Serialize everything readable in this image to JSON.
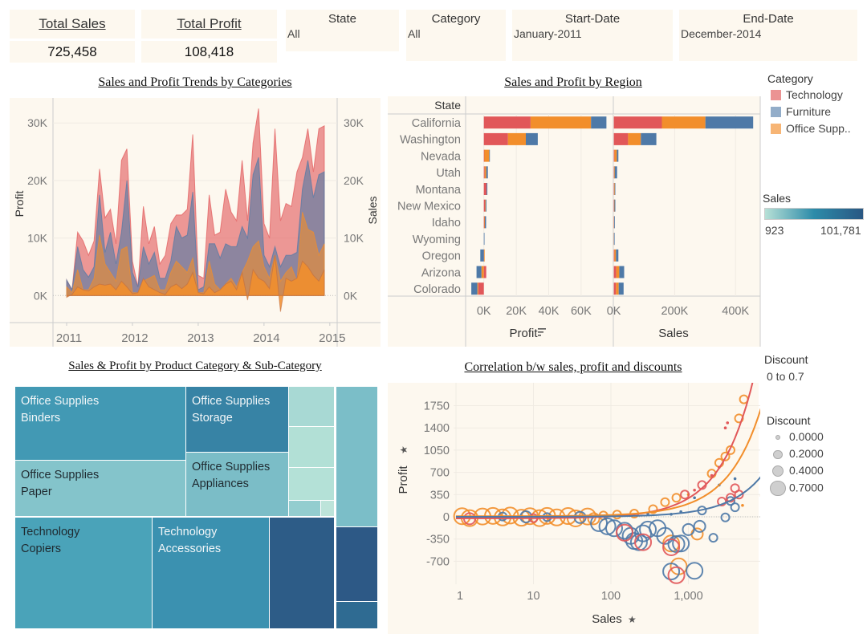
{
  "kpis": [
    {
      "label": "Total Sales",
      "value": "725,458"
    },
    {
      "label": "Total Profit",
      "value": "108,418"
    }
  ],
  "filters": [
    {
      "label": "State",
      "value": "All"
    },
    {
      "label": "Category",
      "value": "All"
    },
    {
      "label": "Start-Date",
      "value": "January-2011"
    },
    {
      "label": "End-Date",
      "value": "December-2014"
    }
  ],
  "colors": {
    "Technology": "#e15759",
    "Furniture": "#4e79a7",
    "Office Supplies": "#f28e2b",
    "panel_bg": "#fdf8ef"
  },
  "legends": {
    "category": {
      "title": "Category",
      "items": [
        {
          "label": "Technology",
          "color": "#eb9393"
        },
        {
          "label": "Furniture",
          "color": "#93adc9"
        },
        {
          "label": "Office Supp..",
          "color": "#f7b575"
        }
      ]
    },
    "sales_color": {
      "title": "Sales",
      "min": "923",
      "max": "101,781",
      "colors": [
        "#b7e0d6",
        "#2c8ba9",
        "#2a5783"
      ]
    },
    "discount_filter": {
      "title": "Discount",
      "range": "0 to 0.7"
    },
    "discount_size": {
      "title": "Discount",
      "items": [
        {
          "label": "0.0000",
          "value": 0
        },
        {
          "label": "0.2000",
          "value": 0.2
        },
        {
          "label": "0.4000",
          "value": 0.4
        },
        {
          "label": "0.7000",
          "value": 0.7
        }
      ]
    }
  },
  "chart_data": [
    {
      "type": "area",
      "title": "Sales and Profit Trends by Categories",
      "stacked": true,
      "ylabel": "Profit",
      "y2label": "Sales",
      "y_ticks": [
        "0K",
        "10K",
        "20K",
        "30K"
      ],
      "y_tick_values": [
        0,
        10,
        20,
        30
      ],
      "y2_ticks": [
        "0K",
        "10K",
        "20K",
        "30K"
      ],
      "x_ticks": [
        "2011",
        "2012",
        "2013",
        "2014",
        "2015"
      ],
      "x": [
        "2011-01",
        "2011-02",
        "2011-03",
        "2011-04",
        "2011-05",
        "2011-06",
        "2011-07",
        "2011-08",
        "2011-09",
        "2011-10",
        "2011-11",
        "2011-12",
        "2012-01",
        "2012-02",
        "2012-03",
        "2012-04",
        "2012-05",
        "2012-06",
        "2012-07",
        "2012-08",
        "2012-09",
        "2012-10",
        "2012-11",
        "2012-12",
        "2013-01",
        "2013-02",
        "2013-03",
        "2013-04",
        "2013-05",
        "2013-06",
        "2013-07",
        "2013-08",
        "2013-09",
        "2013-10",
        "2013-11",
        "2013-12",
        "2014-01",
        "2014-02",
        "2014-03",
        "2014-04",
        "2014-05",
        "2014-06",
        "2014-07",
        "2014-08",
        "2014-09",
        "2014-10",
        "2014-11",
        "2014-12"
      ],
      "series": [
        {
          "name": "Office Supplies",
          "measure": "Sales",
          "values": [
            1.5,
            0.5,
            4.5,
            1,
            1,
            3,
            10.5,
            5.5,
            4,
            2.5,
            8,
            8.5,
            0.5,
            0.5,
            2.5,
            3,
            3.5,
            1,
            1,
            4,
            6,
            5,
            4,
            6.5,
            0.5,
            0.5,
            6,
            2,
            1,
            2,
            3,
            1.5,
            4,
            6,
            8.5,
            9.5,
            5,
            3,
            7,
            2.5,
            4,
            5,
            2.5,
            14.5,
            11.5,
            11,
            7,
            9
          ]
        },
        {
          "name": "Furniture",
          "measure": "Sales",
          "values": [
            1.2,
            0.5,
            4,
            3.5,
            2.2,
            2,
            7,
            2,
            7,
            3,
            3,
            11.5,
            3.5,
            1,
            6,
            2.5,
            4,
            2,
            2,
            2,
            6,
            5,
            6.5,
            11.5,
            0.5,
            1,
            3,
            7,
            5.5,
            7,
            5.5,
            7,
            8,
            4,
            12.5,
            14.5,
            2,
            2,
            1.5,
            2.5,
            3,
            2,
            5,
            4,
            12,
            6,
            14,
            12.5
          ]
        },
        {
          "name": "Technology",
          "measure": "Sales",
          "values": [
            0,
            0,
            2.5,
            5,
            3.8,
            4.5,
            4.5,
            6,
            4,
            3.5,
            12.5,
            5.5,
            2,
            0,
            7,
            3.5,
            4.5,
            2.5,
            4,
            6.5,
            2,
            4,
            4.5,
            10,
            2.5,
            1.5,
            8.5,
            1.5,
            4.5,
            9.5,
            6,
            4.5,
            11.5,
            3,
            5.5,
            8.5,
            5.5,
            5,
            20.5,
            8,
            9,
            8.5,
            14,
            5.5,
            5.5,
            4.5,
            8,
            8
          ]
        },
        {
          "measure": "Profit",
          "values": [
            -0.3,
            0.2,
            1.5,
            1,
            0.8,
            1.5,
            2,
            1.8,
            2,
            1,
            2.5,
            1.5,
            0.3,
            0.5,
            3,
            1.5,
            1,
            0.5,
            0.2,
            1.5,
            2,
            1.2,
            2,
            4,
            0.5,
            0.3,
            1.5,
            0.5,
            1,
            2,
            2.5,
            1,
            4,
            -0.8,
            4.5,
            3,
            2.5,
            1.2,
            7,
            -2.8,
            3,
            2.5,
            3,
            6,
            5,
            3.5,
            2.5,
            4.5
          ]
        }
      ]
    },
    {
      "type": "bar",
      "orientation": "horizontal",
      "stacked": true,
      "title": "Sales and Profit by Region",
      "row_header": "State",
      "categories": [
        "California",
        "Washington",
        "Nevada",
        "Utah",
        "Montana",
        "New Mexico",
        "Idaho",
        "Wyoming",
        "Oregon",
        "Arizona",
        "Colorado"
      ],
      "panels": [
        {
          "measure": "Profit",
          "sort_icon": "sort-descending-icon",
          "ticks": [
            "0K",
            "20K",
            "40K",
            "60K"
          ],
          "tick_values": [
            0,
            20,
            40,
            60
          ],
          "series": [
            {
              "name": "Technology",
              "values": [
                28.8,
                14.9,
                0.3,
                0.5,
                1.7,
                0.8,
                0.3,
                0,
                0.1,
                1.5,
                -3.4
              ]
            },
            {
              "name": "Office Supplies",
              "values": [
                37.3,
                11,
                3,
                1,
                0,
                0.3,
                0.3,
                0,
                0.2,
                -1.5,
                -0.6
              ]
            },
            {
              "name": "Furniture",
              "values": [
                9.5,
                7.4,
                0.3,
                1,
                0.5,
                0.5,
                0.8,
                0.2,
                -2.2,
                -3,
                -3.7
              ]
            }
          ]
        },
        {
          "measure": "Sales",
          "ticks": [
            "0K",
            "200K",
            "400K"
          ],
          "tick_values": [
            0,
            200,
            400
          ],
          "series": [
            {
              "name": "Technology",
              "values": [
                158,
                47,
                2,
                1,
                1,
                1,
                0.5,
                0.3,
                2,
                8,
                7
              ]
            },
            {
              "name": "Office Supplies",
              "values": [
                143,
                42,
                8,
                2,
                2,
                1,
                0.5,
                0.3,
                5,
                10,
                9
              ]
            },
            {
              "name": "Furniture",
              "values": [
                157,
                51,
                5,
                8,
                2,
                3,
                1.5,
                0.3,
                8,
                16,
                16
              ]
            }
          ]
        }
      ]
    },
    {
      "type": "treemap",
      "title": "Sales & Profit by Product Category & Sub-Category",
      "cells": [
        {
          "category": "Office Supplies",
          "sub_category": "Binders",
          "color": "#4299b4",
          "text": "light"
        },
        {
          "category": "Office Supplies",
          "sub_category": "Storage",
          "color": "#3783a5",
          "text": "light"
        },
        {
          "category": "Office Supplies",
          "sub_category": "Paper",
          "color": "#84c4cb",
          "text": "dark"
        },
        {
          "category": "Office Supplies",
          "sub_category": "Appliances",
          "color": "#7bbdc7",
          "text": "dark"
        },
        {
          "color": "#a8d9d4"
        },
        {
          "color": "#b2e0d6"
        },
        {
          "color": "#b4e1d7"
        },
        {
          "color": "#93cdcf"
        },
        {
          "color": "#bde4da"
        },
        {
          "category": "Technology",
          "sub_category": "Copiers",
          "color": "#4aa3b9",
          "text": "dark"
        },
        {
          "category": "Technology",
          "sub_category": "Accessories",
          "color": "#3b91b0",
          "text": "light"
        },
        {
          "color": "#2d5c87"
        },
        {
          "color": "#7bbec8"
        },
        {
          "color": "#2d5986"
        },
        {
          "color": "#2f6b92"
        }
      ]
    },
    {
      "type": "scatter",
      "title": "Correlation b/w sales, profit and  discounts",
      "xlabel": "Sales",
      "ylabel": "Profit",
      "x_scale": "log",
      "x_ticks": [
        "1",
        "10",
        "100",
        "1,000"
      ],
      "x_tick_values": [
        1,
        10,
        100,
        1000
      ],
      "y_ticks": [
        "1750",
        "1400",
        "1050",
        "700",
        "350",
        "0",
        "-350",
        "-700"
      ],
      "y_tick_values": [
        1750,
        1400,
        1050,
        700,
        350,
        0,
        -350,
        -700
      ],
      "point_fields": [
        "sales",
        "profit",
        "discount",
        "category"
      ],
      "points": [
        [
          1.2,
          10,
          0.7,
          "Office Supplies"
        ],
        [
          1.5,
          -20,
          0.7,
          "Office Supplies"
        ],
        [
          2.2,
          5,
          0.7,
          "Office Supplies"
        ],
        [
          3,
          15,
          0.7,
          "Office Supplies"
        ],
        [
          4,
          -10,
          0.7,
          "Office Supplies"
        ],
        [
          5,
          20,
          0.7,
          "Office Supplies"
        ],
        [
          7,
          -15,
          0.7,
          "Office Supplies"
        ],
        [
          9,
          10,
          0.7,
          "Office Supplies"
        ],
        [
          12,
          -20,
          0.7,
          "Office Supplies"
        ],
        [
          15,
          15,
          0.7,
          "Office Supplies"
        ],
        [
          20,
          -10,
          0.7,
          "Office Supplies"
        ],
        [
          28,
          12,
          0.7,
          "Office Supplies"
        ],
        [
          35,
          -25,
          0.7,
          "Office Supplies"
        ],
        [
          50,
          5,
          0.7,
          "Office Supplies"
        ],
        [
          60,
          -30,
          0.4,
          "Office Supplies"
        ],
        [
          80,
          20,
          0.2,
          "Office Supplies"
        ],
        [
          120,
          35,
          0.2,
          "Office Supplies"
        ],
        [
          200,
          50,
          0.2,
          "Office Supplies"
        ],
        [
          350,
          120,
          0.2,
          "Office Supplies"
        ],
        [
          500,
          230,
          0.2,
          "Office Supplies"
        ],
        [
          600,
          -420,
          0.7,
          "Office Supplies"
        ],
        [
          700,
          300,
          0.2,
          "Office Supplies"
        ],
        [
          750,
          -780,
          0.7,
          "Office Supplies"
        ],
        [
          1300,
          -270,
          0.4,
          "Office Supplies"
        ],
        [
          2000,
          680,
          0.2,
          "Office Supplies"
        ],
        [
          2500,
          850,
          0.2,
          "Office Supplies"
        ],
        [
          3000,
          950,
          0.2,
          "Office Supplies"
        ],
        [
          3500,
          1050,
          0.2,
          "Office Supplies"
        ],
        [
          4500,
          1550,
          0.2,
          "Office Supplies"
        ],
        [
          5200,
          1850,
          0.2,
          "Office Supplies"
        ],
        [
          8800,
          330,
          0,
          "Office Supplies"
        ],
        [
          5000,
          180,
          0,
          "Office Supplies"
        ],
        [
          1000,
          350,
          0,
          "Office Supplies"
        ],
        [
          4,
          5,
          0.2,
          "Furniture"
        ],
        [
          8,
          0,
          0.4,
          "Furniture"
        ],
        [
          15,
          -5,
          0.2,
          "Furniture"
        ],
        [
          40,
          -10,
          0.4,
          "Furniture"
        ],
        [
          70,
          -100,
          0.7,
          "Furniture"
        ],
        [
          90,
          -150,
          0.7,
          "Furniture"
        ],
        [
          110,
          -180,
          0.7,
          "Furniture"
        ],
        [
          150,
          -220,
          0.7,
          "Furniture"
        ],
        [
          180,
          -300,
          0.7,
          "Furniture"
        ],
        [
          200,
          -380,
          0.7,
          "Furniture"
        ],
        [
          230,
          -400,
          0.7,
          "Furniture"
        ],
        [
          260,
          -260,
          0.7,
          "Furniture"
        ],
        [
          300,
          -200,
          0.7,
          "Furniture"
        ],
        [
          400,
          -180,
          0.7,
          "Furniture"
        ],
        [
          500,
          -300,
          0.7,
          "Furniture"
        ],
        [
          600,
          -860,
          0.7,
          "Furniture"
        ],
        [
          700,
          -430,
          0.7,
          "Furniture"
        ],
        [
          800,
          -420,
          0.7,
          "Furniture"
        ],
        [
          1000,
          -200,
          0.4,
          "Furniture"
        ],
        [
          1200,
          -850,
          0.7,
          "Furniture"
        ],
        [
          1400,
          -150,
          0.4,
          "Furniture"
        ],
        [
          2100,
          -330,
          0.2,
          "Furniture"
        ],
        [
          3000,
          -10,
          0.2,
          "Furniture"
        ],
        [
          4000,
          150,
          0.2,
          "Furniture"
        ],
        [
          3500,
          250,
          0.2,
          "Furniture"
        ],
        [
          1500,
          100,
          0.2,
          "Furniture"
        ],
        [
          800,
          80,
          0,
          "Furniture"
        ],
        [
          600,
          40,
          0,
          "Furniture"
        ],
        [
          2500,
          500,
          0,
          "Furniture"
        ],
        [
          4000,
          600,
          0,
          "Furniture"
        ],
        [
          1200,
          300,
          0,
          "Furniture"
        ],
        [
          300,
          50,
          0,
          "Furniture"
        ],
        [
          1.5,
          -30,
          0.4,
          "Technology"
        ],
        [
          10,
          -20,
          0.2,
          "Technology"
        ],
        [
          150,
          -250,
          0.7,
          "Technology"
        ],
        [
          260,
          -400,
          0.7,
          "Technology"
        ],
        [
          700,
          -920,
          0.7,
          "Technology"
        ],
        [
          900,
          350,
          0.2,
          "Technology"
        ],
        [
          600,
          -480,
          0.7,
          "Technology"
        ],
        [
          1500,
          500,
          0.2,
          "Technology"
        ],
        [
          2000,
          650,
          0,
          "Technology"
        ],
        [
          2500,
          780,
          0,
          "Technology"
        ],
        [
          3000,
          1400,
          0,
          "Technology"
        ],
        [
          3200,
          1480,
          0,
          "Technology"
        ],
        [
          4000,
          450,
          0.2,
          "Technology"
        ],
        [
          4500,
          350,
          0.2,
          "Technology"
        ],
        [
          3500,
          300,
          0.2,
          "Technology"
        ],
        [
          1200,
          420,
          0,
          "Technology"
        ],
        [
          2700,
          240,
          0.2,
          "Technology"
        ]
      ],
      "trend_lines": [
        {
          "category": "Technology",
          "model": "linear",
          "intercept": -25,
          "slope": 0.317
        },
        {
          "category": "Office Supplies",
          "model": "linear",
          "intercept": 10,
          "slope": 0.196
        },
        {
          "category": "Furniture",
          "model": "linear",
          "intercept": 0,
          "slope": 0.073
        }
      ]
    }
  ]
}
